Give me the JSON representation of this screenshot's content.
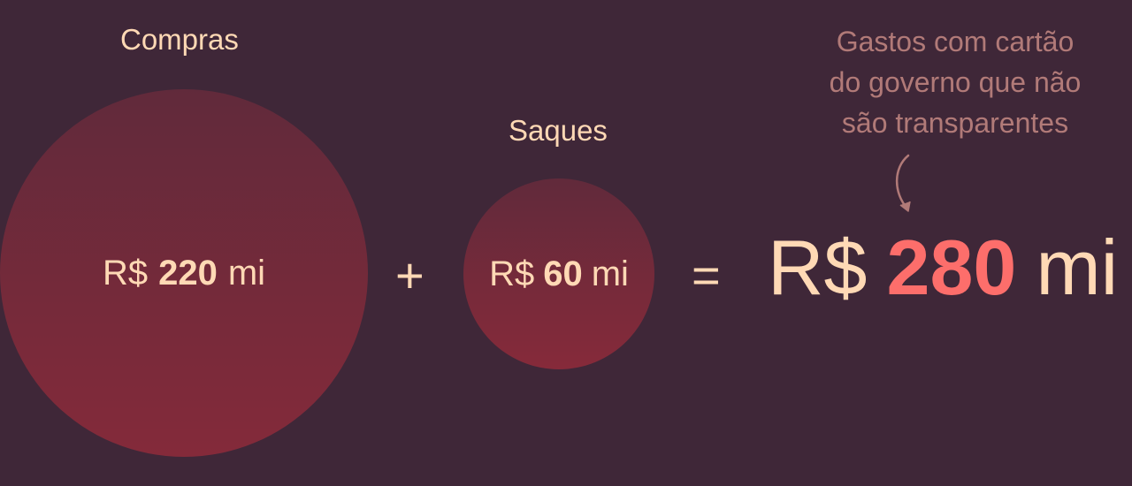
{
  "compras": {
    "label": "Compras",
    "currency": "R$",
    "value": "220",
    "unit": "mi"
  },
  "saques": {
    "label": "Saques",
    "currency": "R$",
    "value": "60",
    "unit": "mi"
  },
  "operators": {
    "plus": "+",
    "equals": "="
  },
  "total": {
    "currency": "R$",
    "value": "280",
    "unit": "mi"
  },
  "annotation": {
    "lines": [
      "Gastos com cartão",
      "do governo que não",
      "são transparentes"
    ]
  },
  "colors": {
    "background": "#3f2738",
    "text": "#ffd9b5",
    "circle": "#7a2a3a",
    "highlight": "#fd6e6b",
    "annotation": "#b17a78"
  }
}
